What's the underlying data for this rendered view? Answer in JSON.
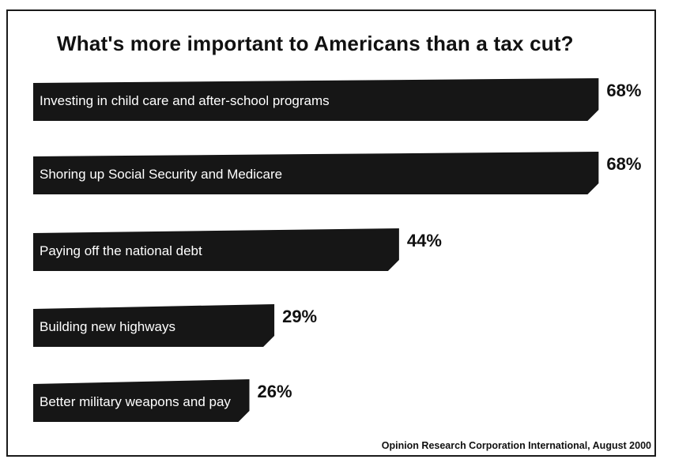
{
  "chart_data": {
    "type": "bar",
    "orientation": "horizontal",
    "title": "What's more important to Americans than a tax cut?",
    "categories": [
      "Investing in child care and after-school programs",
      "Shoring up Social Security and Medicare",
      "Paying off the national debt",
      "Building new highways",
      "Better military weapons and pay"
    ],
    "values": [
      68,
      68,
      44,
      29,
      26
    ],
    "value_labels": [
      "68%",
      "68%",
      "44%",
      "29%",
      "26%"
    ],
    "xlim": [
      0,
      100
    ],
    "grid": false,
    "legend": "none",
    "source": "Opinion Research Corporation International, August 2000",
    "colors": {
      "bar": "#161616",
      "bar_text": "#ffffff",
      "text": "#111111",
      "background": "#ffffff"
    }
  }
}
